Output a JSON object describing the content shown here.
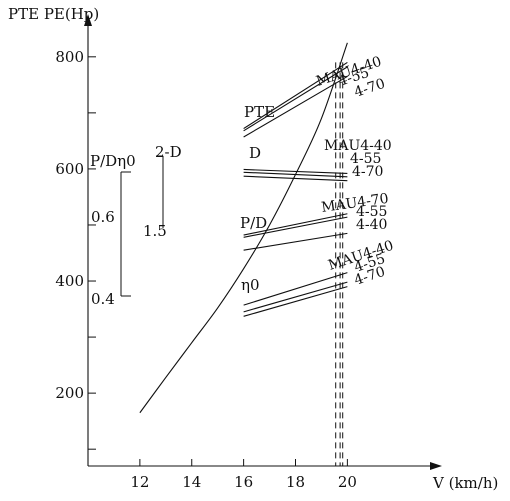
{
  "chart_data": {
    "type": "line",
    "y_axis_label": "PTE PE(Hp)",
    "x_axis_label": "V (km/h)",
    "xlim": [
      10.0,
      22.8
    ],
    "ylim": [
      70,
      830
    ],
    "x_ticks": [
      12,
      14,
      16,
      18,
      20
    ],
    "y_ticks": [
      200,
      400,
      600,
      800
    ],
    "y_minor_ticks": [
      100,
      300,
      500,
      700
    ],
    "secondary_scale": {
      "pd_eta_label": "P/Dη0",
      "pd_eta_ticks": [
        "0.6",
        "0.4"
      ],
      "d_label": "2-D",
      "d_ticks": [
        "1.5"
      ]
    },
    "resistance_curve": {
      "name": "PE",
      "x": [
        12,
        13,
        14,
        15,
        16,
        17,
        18,
        19,
        20
      ],
      "y": [
        165,
        228,
        290,
        352,
        422,
        500,
        590,
        690,
        825
      ]
    },
    "groups": [
      {
        "name": "PTE",
        "series": [
          {
            "name": "MAU4-40",
            "x": [
              16,
              20
            ],
            "y": [
              672,
              790
            ]
          },
          {
            "name": "4-55",
            "x": [
              16,
              20
            ],
            "y": [
              668,
              782
            ]
          },
          {
            "name": "4-70",
            "x": [
              16,
              20
            ],
            "y": [
              657,
              765
            ]
          }
        ]
      },
      {
        "name": "D",
        "series": [
          {
            "name": "MAU4-40",
            "x": [
              16,
              20
            ],
            "y": [
              599,
              592
            ]
          },
          {
            "name": "4-55",
            "x": [
              16,
              20
            ],
            "y": [
              594,
              586
            ]
          },
          {
            "name": "4-70",
            "x": [
              16,
              20
            ],
            "y": [
              587,
              579
            ]
          }
        ]
      },
      {
        "name": "P/D",
        "series": [
          {
            "name": "MAU4-70",
            "x": [
              16,
              20
            ],
            "y": [
              482,
              520
            ]
          },
          {
            "name": "4-55",
            "x": [
              16,
              20
            ],
            "y": [
              478,
              514
            ]
          },
          {
            "name": "4-40",
            "x": [
              16,
              20
            ],
            "y": [
              455,
              485
            ]
          }
        ]
      },
      {
        "name": "η0",
        "series": [
          {
            "name": "MAU4-40",
            "x": [
              16,
              20
            ],
            "y": [
              357,
              415
            ]
          },
          {
            "name": "4-55",
            "x": [
              16,
              20
            ],
            "y": [
              345,
              398
            ]
          },
          {
            "name": "4-70",
            "x": [
              16,
              20
            ],
            "y": [
              337,
              390
            ]
          }
        ]
      }
    ],
    "vertical_dashed": [
      19.55,
      19.72,
      19.82
    ],
    "legend": "none",
    "grid": false
  }
}
